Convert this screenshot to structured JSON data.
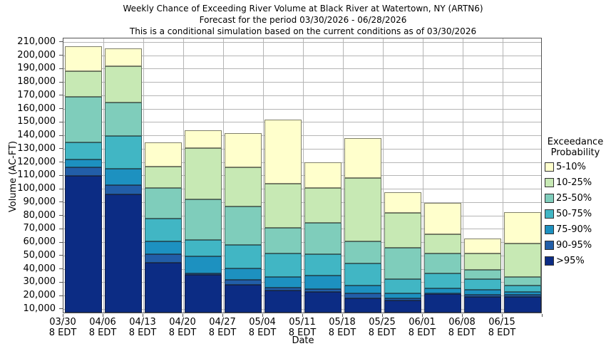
{
  "title": {
    "line1": "Weekly Chance of Exceeding River Volume at Black River at Watertown, NY (ARTN6)",
    "line2": "Forecast for the period 03/30/2026 - 06/28/2026",
    "line3": "This is a conditional simulation based on the current conditions as of 03/30/2026"
  },
  "axes": {
    "x_label": "Date",
    "y_label": "Volume (AC-FT)",
    "x_sub_label": "8 EDT",
    "y_ticks": [
      10000,
      20000,
      30000,
      40000,
      50000,
      60000,
      70000,
      80000,
      90000,
      100000,
      110000,
      120000,
      130000,
      140000,
      150000,
      160000,
      170000,
      180000,
      190000,
      200000,
      210000
    ]
  },
  "legend": {
    "title_line1": "Exceedance",
    "title_line2": "Probability",
    "entries": [
      {
        "label": "5-10%",
        "color": "#ffffcc"
      },
      {
        "label": "10-25%",
        "color": "#c7e9b4"
      },
      {
        "label": "25-50%",
        "color": "#7fcdbb"
      },
      {
        "label": "50-75%",
        "color": "#41b6c4"
      },
      {
        "label": "75-90%",
        "color": "#1d91c0"
      },
      {
        "label": "90-95%",
        "color": "#225ea8"
      },
      {
        "label": ">95%",
        "color": "#0c2c84"
      }
    ]
  },
  "chart_data": {
    "type": "bar",
    "stacked": true,
    "title": "Weekly Chance of Exceeding River Volume at Black River at Watertown, NY (ARTN6)",
    "xlabel": "Date",
    "ylabel": "Volume (AC-FT)",
    "grid": true,
    "legend_position": "right",
    "ylim": [
      6400,
      212800
    ],
    "base_value": 6400,
    "categories": [
      "03/30",
      "04/06",
      "04/13",
      "04/20",
      "04/27",
      "05/04",
      "05/11",
      "05/18",
      "05/25",
      "06/01",
      "06/08",
      "06/15"
    ],
    "series_order_bottom_to_top": [
      ">95%",
      "90-95%",
      "75-90%",
      "50-75%",
      "25-50%",
      "10-25%",
      "5-10%"
    ],
    "bars": [
      {
        "date": "03/30",
        "cumulative_tops_ac_ft": [
          109000,
          115000,
          121000,
          134000,
          168000,
          187000,
          206000
        ]
      },
      {
        "date": "04/06",
        "cumulative_tops_ac_ft": [
          95000,
          102000,
          114000,
          138500,
          163500,
          191000,
          204500
        ]
      },
      {
        "date": "04/13",
        "cumulative_tops_ac_ft": [
          44000,
          50000,
          60000,
          77000,
          100000,
          115500,
          134000
        ]
      },
      {
        "date": "04/20",
        "cumulative_tops_ac_ft": [
          34500,
          36000,
          48500,
          61000,
          91000,
          129500,
          143000
        ]
      },
      {
        "date": "04/27",
        "cumulative_tops_ac_ft": [
          27000,
          31000,
          39500,
          57000,
          86000,
          115000,
          141000
        ]
      },
      {
        "date": "05/04",
        "cumulative_tops_ac_ft": [
          23000,
          25000,
          33000,
          50500,
          70000,
          103000,
          151000
        ]
      },
      {
        "date": "05/11",
        "cumulative_tops_ac_ft": [
          22000,
          24000,
          34000,
          50000,
          73500,
          100000,
          119000
        ]
      },
      {
        "date": "05/18",
        "cumulative_tops_ac_ft": [
          17000,
          21000,
          26500,
          43000,
          60000,
          107000,
          137000
        ]
      },
      {
        "date": "05/25",
        "cumulative_tops_ac_ft": [
          15500,
          17000,
          21000,
          31500,
          55000,
          81000,
          96500
        ]
      },
      {
        "date": "06/01",
        "cumulative_tops_ac_ft": [
          20500,
          21000,
          24500,
          36000,
          50500,
          65000,
          88500
        ]
      },
      {
        "date": "06/08",
        "cumulative_tops_ac_ft": [
          18000,
          19500,
          23500,
          31500,
          38500,
          50500,
          62000
        ]
      },
      {
        "date": "06/15",
        "cumulative_tops_ac_ft": [
          18000,
          19500,
          22000,
          26500,
          33000,
          58000,
          81500
        ]
      }
    ]
  },
  "style_colors": {
    "grid": "#b5b5b5",
    "axis_border": "#555555",
    "background": "#ffffff"
  }
}
